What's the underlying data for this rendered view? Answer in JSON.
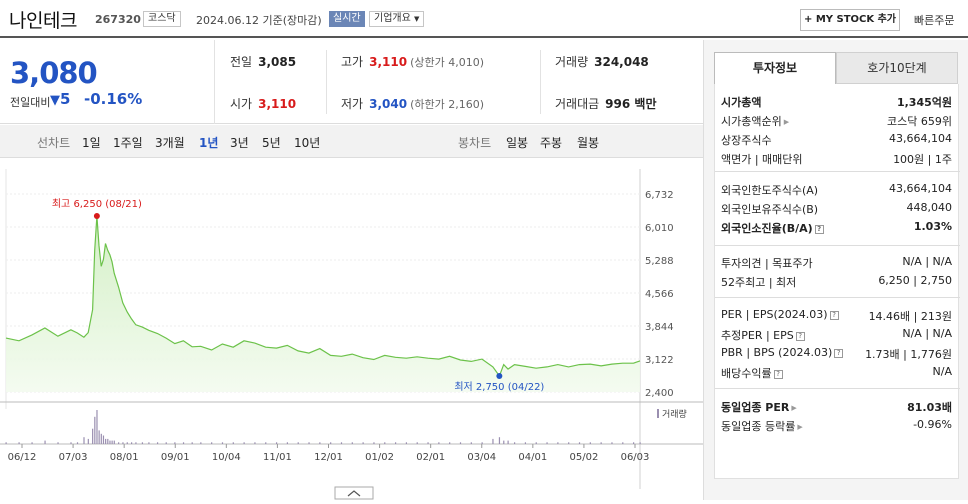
{
  "header": {
    "stock_name": "나인테크",
    "stock_code": "267320",
    "market": "코스닥",
    "date_text": "2024.06.12 기준(장마감)",
    "realtime_label": "실시간",
    "company_overview": "기업개요",
    "my_stock_button": "+ MY STOCK 추가",
    "quick_order": "빠른주문"
  },
  "price": {
    "current": "3,080",
    "prev_label": "전일대비",
    "change": "5",
    "change_pct": "-0.16%"
  },
  "summary": {
    "prev_close_label": "전일",
    "prev_close": "3,085",
    "high_label": "고가",
    "high": "3,110",
    "upper_limit": "(상한가 4,010)",
    "volume_label": "거래량",
    "volume": "324,048",
    "open_label": "시가",
    "open": "3,110",
    "low_label": "저가",
    "low": "3,040",
    "lower_limit": "(하한가 2,160)",
    "value_label": "거래대금",
    "value": "996 백만"
  },
  "period_bar": {
    "line_label": "선차트",
    "line_periods": [
      "1일",
      "1주일",
      "3개월",
      "1년",
      "3년",
      "5년",
      "10년"
    ],
    "selected": "1년",
    "candle_label": "봉차트",
    "candle_periods": [
      "일봉",
      "주봉",
      "월봉"
    ]
  },
  "chart_data": {
    "type": "area",
    "title": "",
    "y_ticks": [
      "6,732",
      "6,010",
      "5,288",
      "4,566",
      "3,844",
      "3,122",
      "2,400"
    ],
    "ylim": [
      2400,
      6732
    ],
    "x_ticks": [
      "06/12",
      "07/03",
      "08/01",
      "09/01",
      "10/04",
      "11/01",
      "12/01",
      "01/02",
      "02/01",
      "03/04",
      "04/01",
      "05/02",
      "06/03"
    ],
    "max_label": "최고 6,250 (08/21)",
    "min_label": "최저 2,750 (04/22)",
    "volume_label": "거래량",
    "x": [
      0,
      6,
      12,
      18,
      24,
      30,
      33,
      36,
      38,
      40,
      41,
      42,
      43,
      44,
      45,
      46,
      47,
      48,
      49,
      50,
      52,
      54,
      56,
      58,
      60,
      63,
      66,
      70,
      74,
      78,
      82,
      86,
      90,
      95,
      100,
      105,
      110,
      115,
      120,
      125,
      130,
      135,
      140,
      145,
      150,
      155,
      160,
      165,
      170,
      175,
      180,
      185,
      190,
      195,
      200,
      205,
      210,
      215,
      220,
      225,
      228,
      230,
      232,
      235,
      240,
      245,
      250,
      255,
      260,
      265,
      270,
      275,
      280,
      285,
      290,
      293
    ],
    "close": [
      3580,
      3520,
      3650,
      3800,
      3620,
      3760,
      3690,
      3600,
      3700,
      4200,
      5500,
      6250,
      5600,
      5150,
      5300,
      5650,
      5500,
      5400,
      5250,
      5000,
      4700,
      4350,
      4150,
      4000,
      3870,
      3820,
      3750,
      3680,
      3580,
      3460,
      3520,
      3390,
      3400,
      3320,
      3450,
      3380,
      3520,
      3470,
      3380,
      3360,
      3420,
      3300,
      3250,
      3350,
      3200,
      3180,
      3230,
      3150,
      3110,
      3200,
      3160,
      3140,
      3170,
      3140,
      3120,
      3180,
      3100,
      3070,
      3120,
      2950,
      2750,
      3000,
      2900,
      3000,
      2960,
      2920,
      2950,
      3000,
      2950,
      3000,
      3010,
      2970,
      3010,
      3030,
      3030,
      3080
    ],
    "volume": [
      1,
      1,
      1,
      2,
      1,
      1,
      1,
      4,
      3,
      9,
      16,
      20,
      8,
      6,
      5,
      3,
      3,
      2,
      2,
      2,
      1,
      1,
      1,
      1,
      1,
      1,
      1,
      1,
      1,
      1,
      1,
      1,
      1,
      1,
      1,
      1,
      1,
      1,
      1,
      1,
      1,
      1,
      1,
      1,
      1,
      1,
      1,
      1,
      1,
      1,
      1,
      1,
      1,
      1,
      1,
      1,
      1,
      1,
      1,
      3,
      4,
      2,
      2,
      1,
      1,
      1,
      1,
      1,
      1,
      1,
      1,
      1,
      1,
      1,
      1,
      1
    ]
  },
  "right_panel": {
    "tab_active": "투자정보",
    "tab_other": "호가10단계",
    "group1": [
      {
        "label": "시가총액",
        "value": "1,345억원",
        "bold": true
      },
      {
        "label": "시가총액순위",
        "value": "코스닥 659위"
      },
      {
        "label": "상장주식수",
        "value": "43,664,104"
      },
      {
        "label": "액면가 | 매매단위",
        "value": "100원 | 1주"
      }
    ],
    "group2": [
      {
        "label": "외국인한도주식수(A)",
        "value": "43,664,104"
      },
      {
        "label": "외국인보유주식수(B)",
        "value": "448,040"
      },
      {
        "label": "외국인소진율(B/A)",
        "value": "1.03%",
        "bold": true
      }
    ],
    "group3": [
      {
        "label": "투자의견 | 목표주가",
        "value": "N/A | N/A"
      },
      {
        "label": "52주최고 | 최저",
        "value": "6,250 | 2,750"
      }
    ],
    "group4": [
      {
        "label": "PER | EPS(2024.03)",
        "value": "14.46배 | 213원"
      },
      {
        "label": "추정PER | EPS",
        "value": "N/A | N/A"
      },
      {
        "label": "PBR | BPS (2024.03)",
        "value": "1.73배 | 1,776원"
      },
      {
        "label": "배당수익률",
        "value": "N/A"
      }
    ],
    "group5": [
      {
        "label": "동일업종 PER",
        "value": "81.03배",
        "bold": true
      },
      {
        "label": "동일업종 등락률",
        "value": "-0.96%"
      }
    ]
  },
  "colors": {
    "up": "#d81b1b",
    "down": "#2354c3",
    "chart_line": "#6cc24a",
    "volume_bar": "#9a8fb0"
  }
}
